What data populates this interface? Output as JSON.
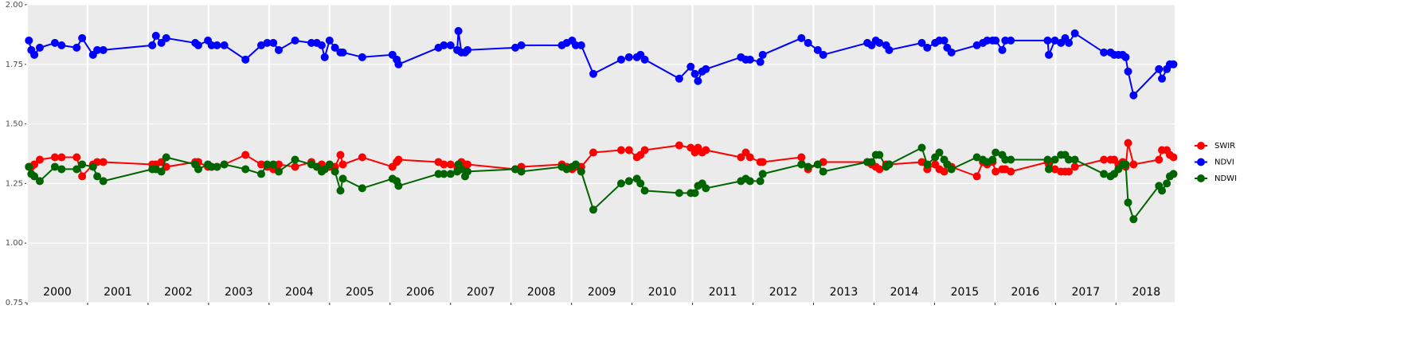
{
  "chart_data": {
    "type": "line",
    "x": [
      2000.03,
      2000.07,
      2000.12,
      2000.21,
      2000.46,
      2000.57,
      2000.82,
      2000.91,
      2001.09,
      2001.16,
      2001.26,
      2002.07,
      2002.13,
      2002.22,
      2002.3,
      2002.78,
      2002.83,
      2002.99,
      2003.05,
      2003.14,
      2003.26,
      2003.61,
      2003.87,
      2003.97,
      2004.07,
      2004.16,
      2004.43,
      2004.7,
      2004.79,
      2004.87,
      2004.92,
      2005.0,
      2005.09,
      2005.18,
      2005.22,
      2005.54,
      2006.04,
      2006.11,
      2006.14,
      2006.8,
      2006.89,
      2007.0,
      2007.11,
      2007.13,
      2007.18,
      2007.24,
      2007.28,
      2008.07,
      2008.17,
      2008.84,
      2008.92,
      2009.01,
      2009.07,
      2009.16,
      2009.36,
      2009.82,
      2009.95,
      2010.08,
      2010.14,
      2010.21,
      2010.78,
      2010.97,
      2011.04,
      2011.09,
      2011.16,
      2011.22,
      2011.8,
      2011.88,
      2011.95,
      2012.12,
      2012.16,
      2012.8,
      2012.91,
      2013.07,
      2013.16,
      2013.89,
      2013.96,
      2014.03,
      2014.09,
      2014.2,
      2014.25,
      2014.79,
      2014.88,
      2015.01,
      2015.08,
      2015.16,
      2015.21,
      2015.28,
      2015.7,
      2015.8,
      2015.87,
      2015.96,
      2016.01,
      2016.12,
      2016.17,
      2016.26,
      2016.87,
      2016.89,
      2016.99,
      2017.09,
      2017.16,
      2017.22,
      2017.32,
      2017.8,
      2017.91,
      2017.97,
      2018.04,
      2018.11,
      2018.16,
      2018.2,
      2018.29,
      2018.71,
      2018.76,
      2018.84,
      2018.89,
      2018.95
    ],
    "series": [
      {
        "name": "SWIR",
        "color": "#ff0000",
        "values": [
          1.32,
          1.32,
          1.33,
          1.35,
          1.36,
          1.36,
          1.36,
          1.28,
          1.33,
          1.34,
          1.34,
          1.33,
          1.33,
          1.34,
          1.32,
          1.34,
          1.34,
          1.32,
          1.32,
          1.32,
          1.33,
          1.37,
          1.33,
          1.32,
          1.31,
          1.33,
          1.32,
          1.34,
          1.32,
          1.33,
          1.31,
          1.32,
          1.32,
          1.37,
          1.33,
          1.36,
          1.32,
          1.34,
          1.35,
          1.34,
          1.33,
          1.33,
          1.32,
          1.32,
          1.34,
          1.33,
          1.33,
          1.31,
          1.32,
          1.33,
          1.32,
          1.31,
          1.32,
          1.32,
          1.38,
          1.39,
          1.39,
          1.36,
          1.37,
          1.39,
          1.41,
          1.4,
          1.38,
          1.4,
          1.38,
          1.39,
          1.36,
          1.38,
          1.36,
          1.34,
          1.34,
          1.36,
          1.31,
          1.33,
          1.34,
          1.34,
          1.33,
          1.32,
          1.31,
          1.33,
          1.33,
          1.34,
          1.31,
          1.33,
          1.31,
          1.3,
          1.33,
          1.32,
          1.28,
          1.34,
          1.33,
          1.34,
          1.3,
          1.31,
          1.31,
          1.3,
          1.34,
          1.33,
          1.31,
          1.3,
          1.3,
          1.3,
          1.32,
          1.35,
          1.35,
          1.35,
          1.33,
          1.34,
          1.32,
          1.42,
          1.33,
          1.35,
          1.39,
          1.39,
          1.37,
          1.36
        ]
      },
      {
        "name": "NDVI",
        "color": "#0000ff",
        "values": [
          1.85,
          1.81,
          1.79,
          1.82,
          1.84,
          1.83,
          1.82,
          1.86,
          1.79,
          1.81,
          1.81,
          1.83,
          1.87,
          1.84,
          1.86,
          1.84,
          1.83,
          1.85,
          1.83,
          1.83,
          1.83,
          1.77,
          1.83,
          1.84,
          1.84,
          1.81,
          1.85,
          1.84,
          1.84,
          1.83,
          1.78,
          1.85,
          1.82,
          1.8,
          1.8,
          1.78,
          1.79,
          1.77,
          1.75,
          1.82,
          1.83,
          1.83,
          1.81,
          1.89,
          1.8,
          1.8,
          1.81,
          1.82,
          1.83,
          1.83,
          1.84,
          1.85,
          1.83,
          1.83,
          1.71,
          1.77,
          1.78,
          1.78,
          1.79,
          1.77,
          1.69,
          1.74,
          1.71,
          1.68,
          1.72,
          1.73,
          1.78,
          1.77,
          1.77,
          1.76,
          1.79,
          1.86,
          1.84,
          1.81,
          1.79,
          1.84,
          1.83,
          1.85,
          1.84,
          1.83,
          1.81,
          1.84,
          1.82,
          1.84,
          1.85,
          1.85,
          1.82,
          1.8,
          1.83,
          1.84,
          1.85,
          1.85,
          1.85,
          1.81,
          1.85,
          1.85,
          1.85,
          1.79,
          1.85,
          1.84,
          1.86,
          1.84,
          1.88,
          1.8,
          1.8,
          1.79,
          1.79,
          1.79,
          1.78,
          1.72,
          1.62,
          1.73,
          1.69,
          1.73,
          1.75,
          1.75
        ]
      },
      {
        "name": "NDWI",
        "color": "#006400",
        "values": [
          1.32,
          1.29,
          1.28,
          1.26,
          1.32,
          1.31,
          1.31,
          1.33,
          1.32,
          1.28,
          1.26,
          1.31,
          1.31,
          1.3,
          1.36,
          1.33,
          1.31,
          1.33,
          1.32,
          1.32,
          1.33,
          1.31,
          1.29,
          1.33,
          1.33,
          1.3,
          1.35,
          1.33,
          1.32,
          1.3,
          1.31,
          1.33,
          1.3,
          1.22,
          1.27,
          1.23,
          1.27,
          1.26,
          1.24,
          1.29,
          1.29,
          1.29,
          1.3,
          1.33,
          1.31,
          1.28,
          1.3,
          1.31,
          1.3,
          1.32,
          1.31,
          1.32,
          1.33,
          1.3,
          1.14,
          1.25,
          1.26,
          1.27,
          1.25,
          1.22,
          1.21,
          1.21,
          1.21,
          1.24,
          1.25,
          1.23,
          1.26,
          1.27,
          1.26,
          1.26,
          1.29,
          1.33,
          1.32,
          1.33,
          1.3,
          1.34,
          1.34,
          1.37,
          1.37,
          1.32,
          1.33,
          1.4,
          1.33,
          1.36,
          1.38,
          1.35,
          1.33,
          1.31,
          1.36,
          1.35,
          1.34,
          1.35,
          1.38,
          1.37,
          1.35,
          1.35,
          1.35,
          1.31,
          1.35,
          1.37,
          1.37,
          1.35,
          1.35,
          1.29,
          1.28,
          1.29,
          1.31,
          1.33,
          1.33,
          1.17,
          1.1,
          1.24,
          1.22,
          1.25,
          1.28,
          1.29
        ]
      }
    ],
    "ylim": [
      0.75,
      2.0
    ],
    "yticks": [
      {
        "value": 0.75,
        "label": "0.75"
      },
      {
        "value": 1.0,
        "label": "1.00"
      },
      {
        "value": 1.25,
        "label": "1.25"
      },
      {
        "value": 1.5,
        "label": "1.50"
      },
      {
        "value": 1.75,
        "label": "1.75"
      },
      {
        "value": 2.0,
        "label": "2.00"
      }
    ],
    "xlim": [
      2000,
      2018.97
    ],
    "xticks": [
      2000,
      2001,
      2002,
      2003,
      2004,
      2005,
      2006,
      2007,
      2008,
      2009,
      2010,
      2011,
      2012,
      2013,
      2014,
      2015,
      2016,
      2017,
      2018
    ],
    "year_labels": [
      "2000",
      "2001",
      "2002",
      "2003",
      "2004",
      "2005",
      "2006",
      "2007",
      "2008",
      "2009",
      "2010",
      "2011",
      "2012",
      "2013",
      "2014",
      "2015",
      "2016",
      "2017",
      "2018"
    ],
    "grid": true,
    "legend": "right"
  }
}
